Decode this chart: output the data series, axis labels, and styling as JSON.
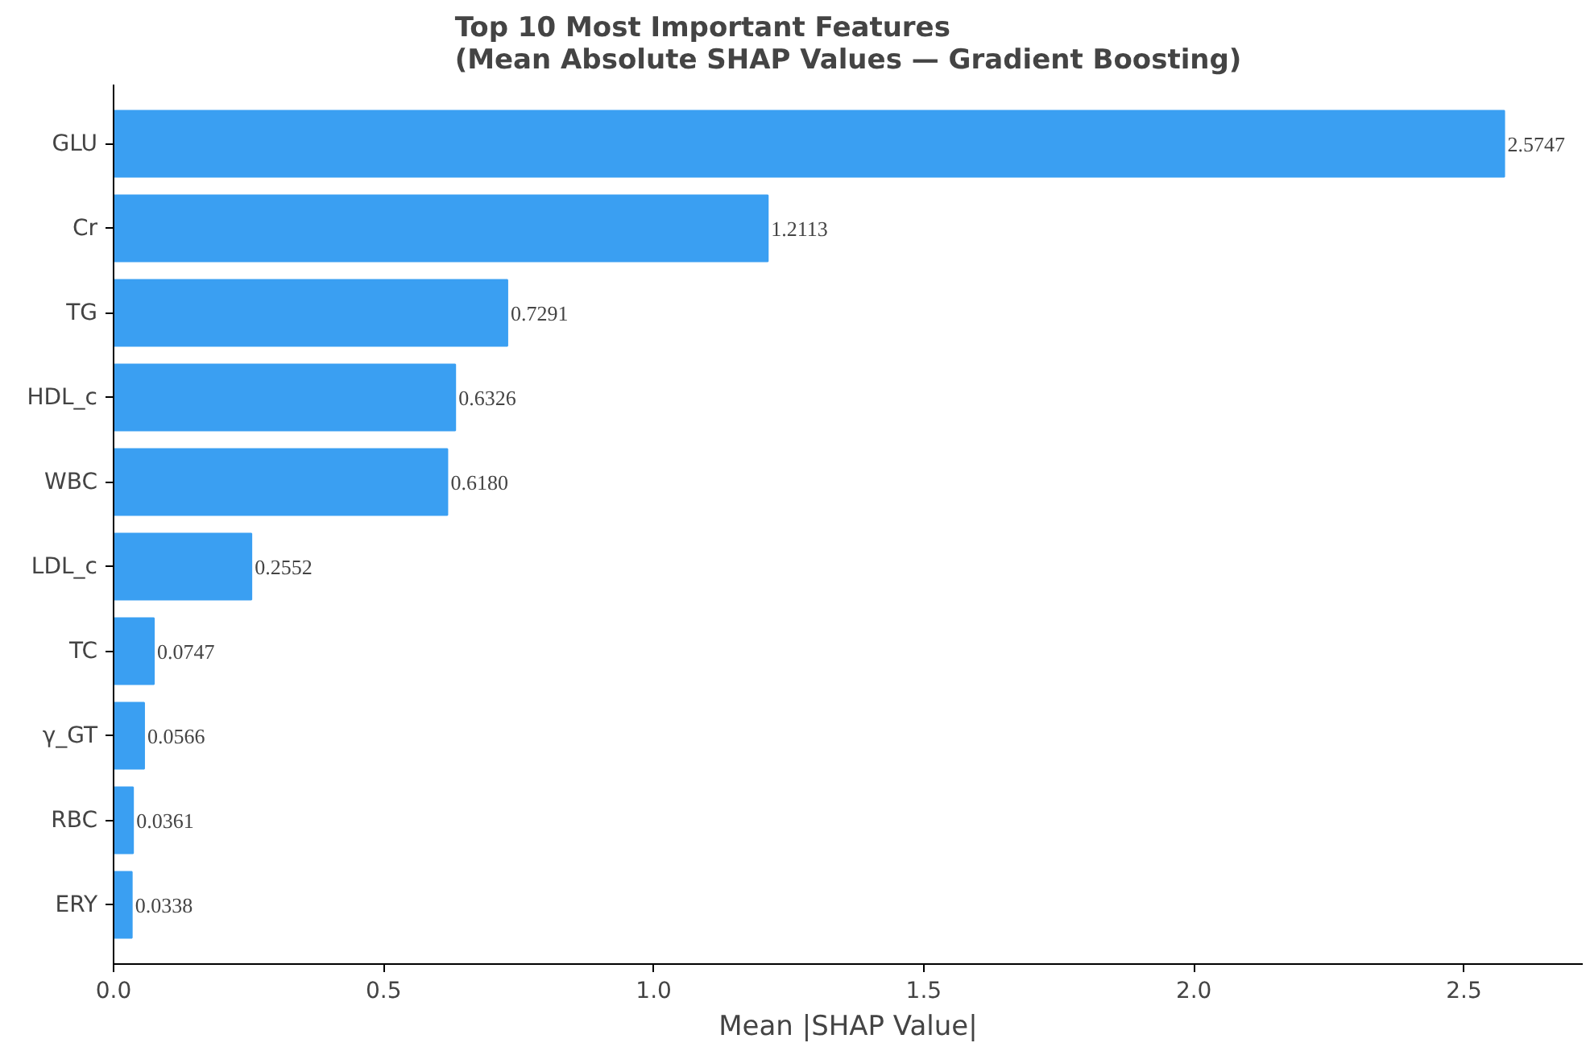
{
  "chart_data": {
    "type": "bar",
    "orientation": "horizontal",
    "title": "Top 10 Most Important Features\n(Mean Absolute SHAP Values — Gradient Boosting)",
    "xlabel": "Mean |SHAP Value|",
    "categories": [
      "GLU",
      "Cr",
      "TG",
      "HDL_c",
      "WBC",
      "LDL_c",
      "TC",
      "γ_GT",
      "RBC",
      "ERY"
    ],
    "values": [
      2.5747,
      1.2113,
      0.7291,
      0.6326,
      0.618,
      0.2552,
      0.0747,
      0.0566,
      0.0361,
      0.0338
    ],
    "value_labels": [
      "2.5747",
      "1.2113",
      "0.7291",
      "0.6326",
      "0.6180",
      "0.2552",
      "0.0747",
      "0.0566",
      "0.0361",
      "0.0338"
    ],
    "color": "#3a9ff2",
    "xlim": [
      0,
      2.72
    ],
    "xticks": [
      {
        "value": 0,
        "label": "0.0"
      },
      {
        "value": 0.5,
        "label": "0.5"
      },
      {
        "value": 1,
        "label": "1.0"
      },
      {
        "value": 1.5,
        "label": "1.5"
      },
      {
        "value": 2,
        "label": "2.0"
      },
      {
        "value": 2.5,
        "label": "2.5"
      }
    ],
    "grid": false
  }
}
